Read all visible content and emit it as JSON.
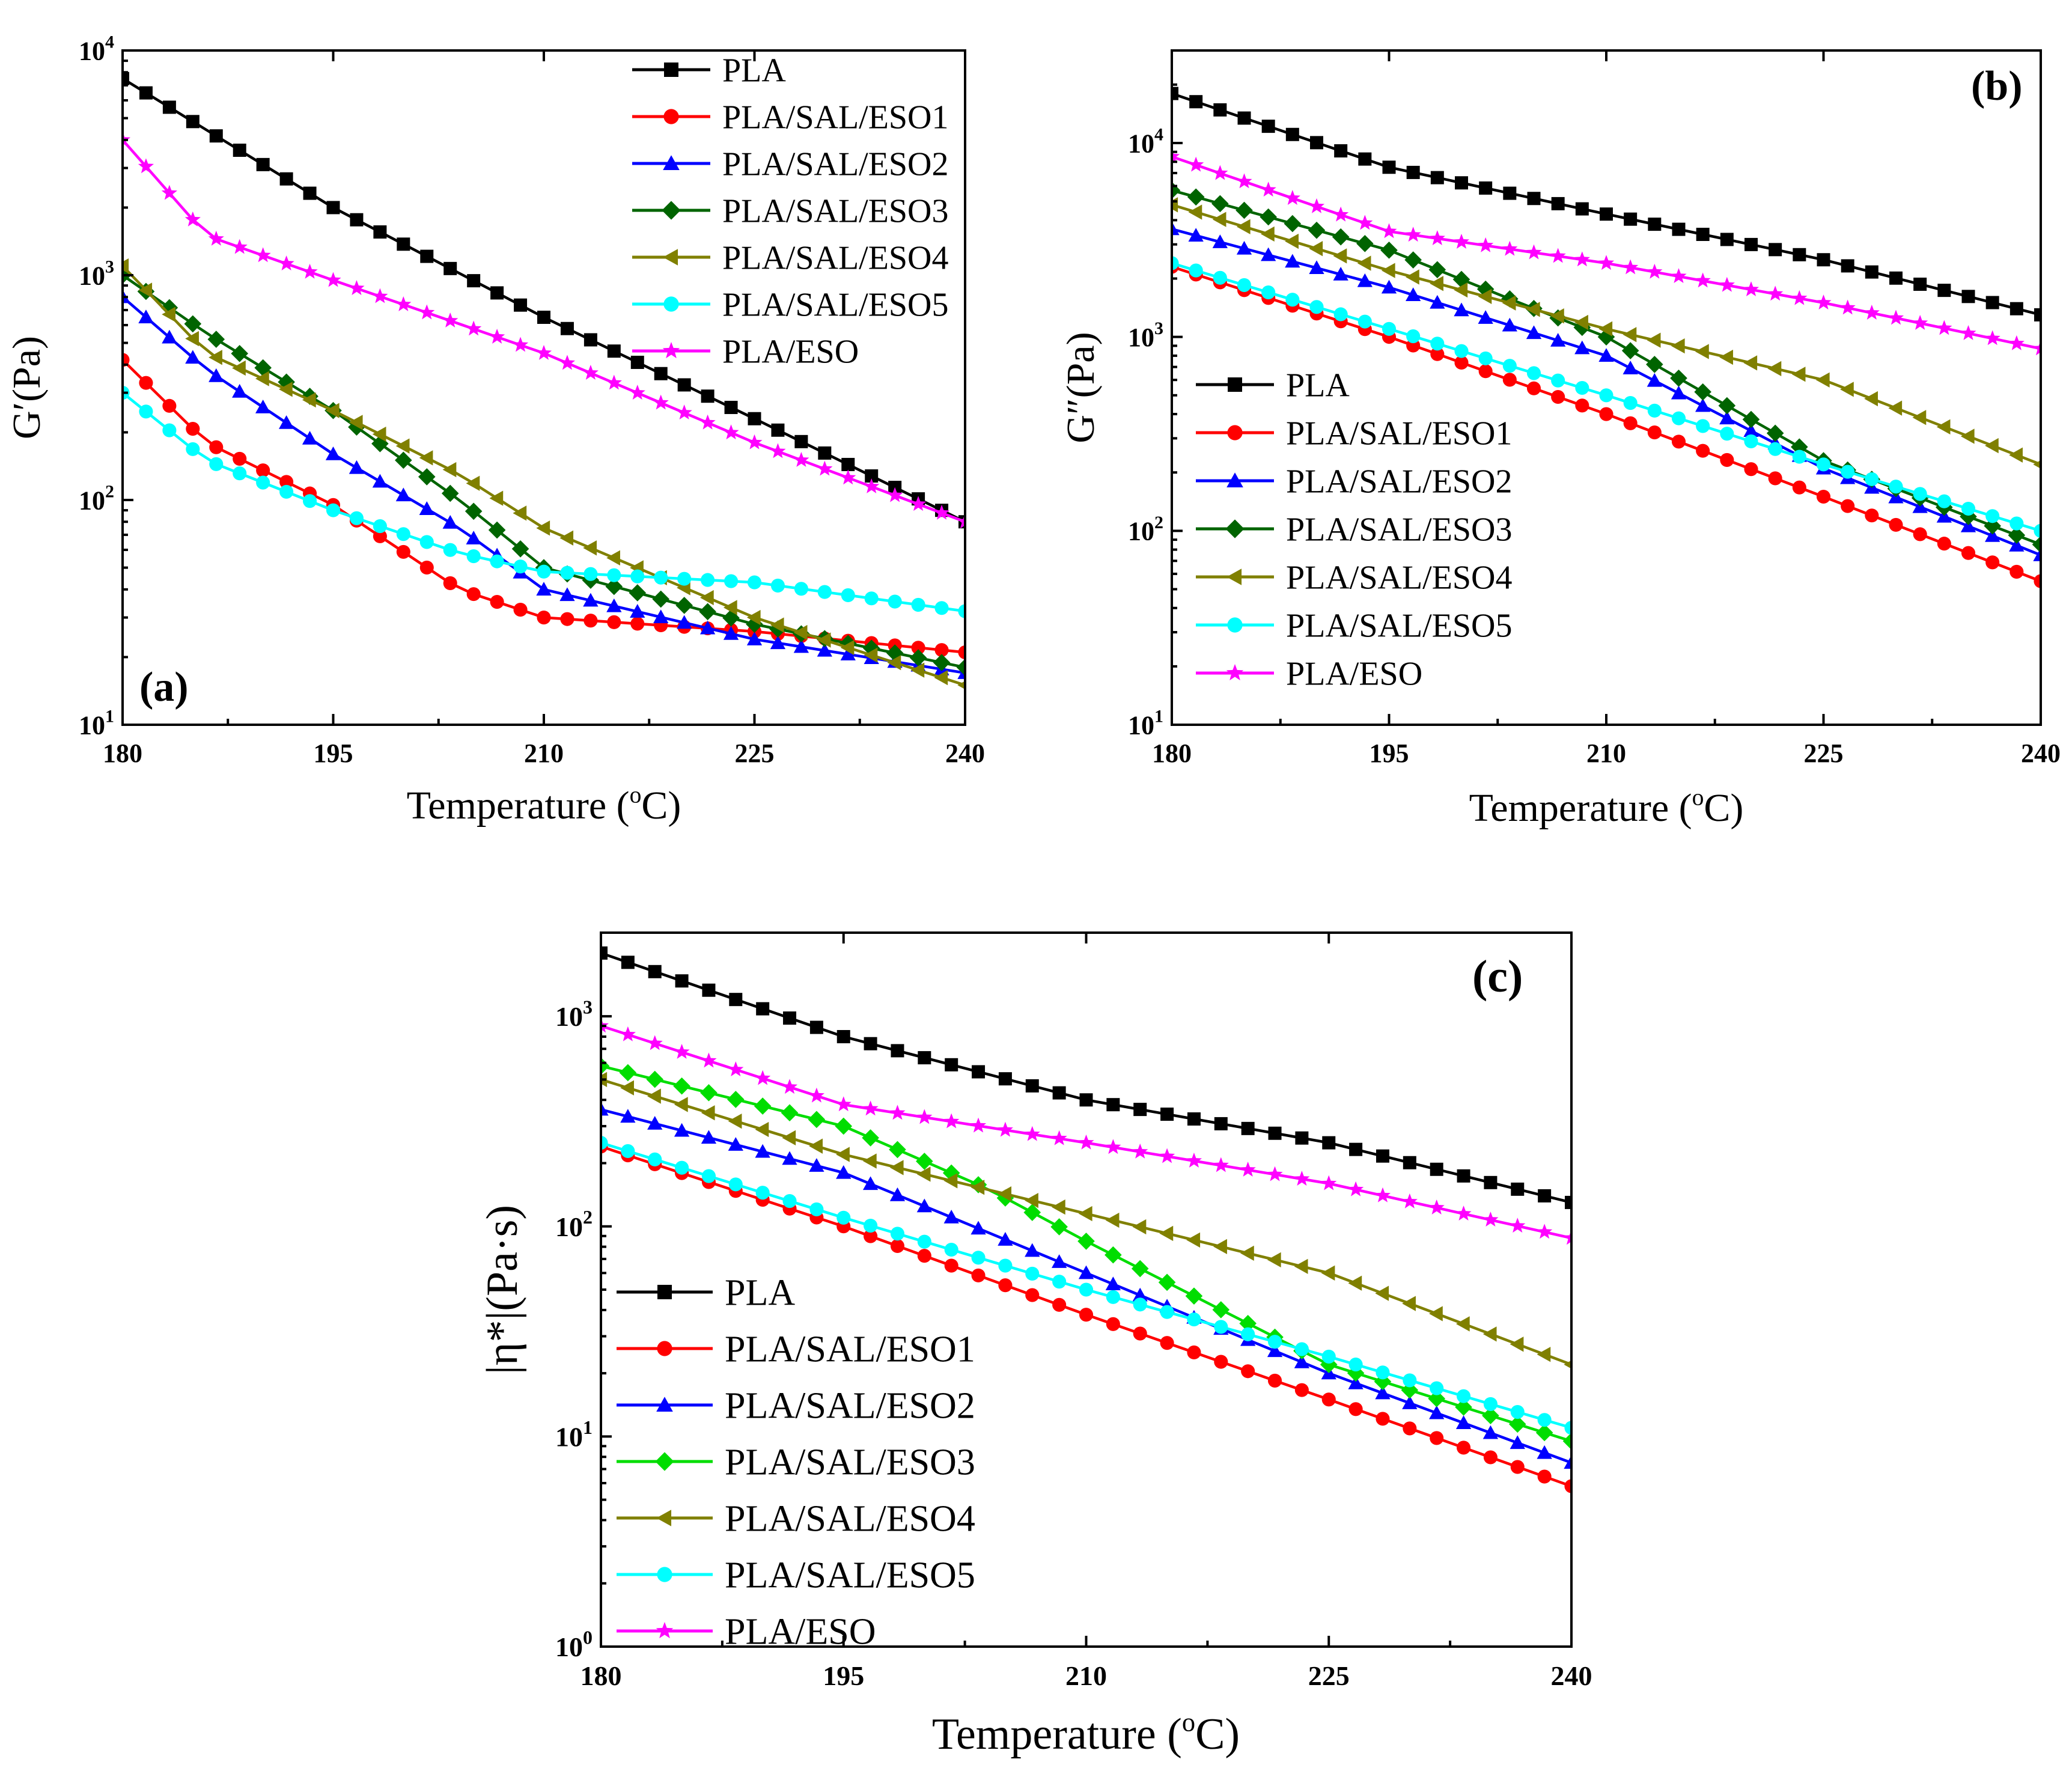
{
  "chart_data": [
    {
      "type": "line",
      "panel_label": "(a)",
      "xlabel": "Temperature (",
      "xlabel_sup": "o",
      "xlabel_tail": "C)",
      "ylabel": "G′(Pa)",
      "xscale": "linear",
      "yscale": "log",
      "xlim": [
        180,
        240
      ],
      "ylim": [
        10,
        10000
      ],
      "xticks": [
        "180",
        "195",
        "210",
        "225",
        "240"
      ],
      "yticks": [
        {
          "base": "10",
          "exp": "1"
        },
        {
          "base": "10",
          "exp": "2"
        },
        {
          "base": "10",
          "exp": "3"
        },
        {
          "base": "10",
          "exp": "4"
        }
      ],
      "legend_position": "top-right",
      "series": [
        {
          "name": "PLA",
          "color": "#000000",
          "marker": "square",
          "x": [
            180,
            195,
            210,
            225,
            240
          ],
          "y": [
            7500,
            2000,
            650,
            230,
            80
          ]
        },
        {
          "name": "PLA/SAL/ESO1",
          "color": "#ff0000",
          "marker": "circle",
          "x": [
            180,
            186,
            195,
            204,
            210,
            225,
            240
          ],
          "y": [
            420,
            180,
            95,
            40,
            30,
            26,
            21
          ]
        },
        {
          "name": "PLA/SAL/ESO2",
          "color": "#0000ff",
          "marker": "triangle-up",
          "x": [
            180,
            186,
            195,
            204,
            210,
            225,
            240
          ],
          "y": [
            800,
            380,
            160,
            75,
            40,
            24,
            17
          ]
        },
        {
          "name": "PLA/SAL/ESO3",
          "color": "#006400",
          "marker": "diamond",
          "x": [
            180,
            186,
            195,
            204,
            210,
            225,
            240
          ],
          "y": [
            1000,
            550,
            250,
            100,
            50,
            28,
            18
          ]
        },
        {
          "name": "PLA/SAL/ESO4",
          "color": "#808000",
          "marker": "triangle-left",
          "x": [
            180,
            186,
            195,
            204,
            210,
            225,
            240
          ],
          "y": [
            1100,
            450,
            250,
            130,
            75,
            30,
            15
          ]
        },
        {
          "name": "PLA/SAL/ESO5",
          "color": "#00ffff",
          "marker": "circle",
          "x": [
            180,
            186,
            195,
            204,
            210,
            225,
            240
          ],
          "y": [
            300,
            150,
            90,
            58,
            48,
            43,
            32
          ]
        },
        {
          "name": "PLA/ESO",
          "color": "#ff00ff",
          "marker": "star",
          "x": [
            180,
            186,
            195,
            210,
            225,
            240
          ],
          "y": [
            4000,
            1500,
            950,
            450,
            180,
            80
          ]
        }
      ]
    },
    {
      "type": "line",
      "panel_label": "(b)",
      "xlabel": "Temperature (",
      "xlabel_sup": "o",
      "xlabel_tail": "C)",
      "ylabel": "G″(Pa)",
      "xscale": "linear",
      "yscale": "log",
      "xlim": [
        180,
        240
      ],
      "ylim": [
        10,
        30000
      ],
      "xticks": [
        "180",
        "195",
        "210",
        "225",
        "240"
      ],
      "yticks": [
        {
          "base": "10",
          "exp": "1"
        },
        {
          "base": "10",
          "exp": "2"
        },
        {
          "base": "10",
          "exp": "3"
        },
        {
          "base": "10",
          "exp": "4"
        }
      ],
      "legend_position": "middle-left",
      "series": [
        {
          "name": "PLA",
          "color": "#000000",
          "marker": "square",
          "x": [
            180,
            195,
            210,
            225,
            240
          ],
          "y": [
            18000,
            7500,
            4300,
            2500,
            1300
          ]
        },
        {
          "name": "PLA/SAL/ESO1",
          "color": "#ff0000",
          "marker": "circle",
          "x": [
            180,
            195,
            210,
            225,
            240
          ],
          "y": [
            2300,
            1000,
            400,
            150,
            55
          ]
        },
        {
          "name": "PLA/SAL/ESO2",
          "color": "#0000ff",
          "marker": "triangle-up",
          "x": [
            180,
            195,
            210,
            225,
            240
          ],
          "y": [
            3600,
            1800,
            800,
            210,
            75
          ]
        },
        {
          "name": "PLA/SAL/ESO3",
          "color": "#006400",
          "marker": "diamond",
          "x": [
            180,
            195,
            204,
            210,
            225,
            240
          ],
          "y": [
            5700,
            2800,
            1500,
            1000,
            230,
            85
          ]
        },
        {
          "name": "PLA/SAL/ESO4",
          "color": "#808000",
          "marker": "triangle-left",
          "x": [
            180,
            195,
            210,
            225,
            240
          ],
          "y": [
            4800,
            2200,
            1100,
            600,
            220
          ]
        },
        {
          "name": "PLA/SAL/ESO5",
          "color": "#00ffff",
          "marker": "circle",
          "x": [
            180,
            195,
            210,
            225,
            240
          ],
          "y": [
            2400,
            1100,
            500,
            220,
            100
          ]
        },
        {
          "name": "PLA/ESO",
          "color": "#ff00ff",
          "marker": "star",
          "x": [
            180,
            195,
            210,
            225,
            240
          ],
          "y": [
            8500,
            3500,
            2400,
            1500,
            870
          ]
        }
      ]
    },
    {
      "type": "line",
      "panel_label": "(c)",
      "xlabel": "Temperature (",
      "xlabel_sup": "o",
      "xlabel_tail": "C)",
      "ylabel": "|η*|(Pa·s)",
      "xscale": "linear",
      "yscale": "log",
      "xlim": [
        180,
        240
      ],
      "ylim": [
        1,
        2500
      ],
      "xticks": [
        "180",
        "195",
        "210",
        "225",
        "240"
      ],
      "yticks": [
        {
          "base": "10",
          "exp": "0"
        },
        {
          "base": "10",
          "exp": "1"
        },
        {
          "base": "10",
          "exp": "2"
        },
        {
          "base": "10",
          "exp": "3"
        }
      ],
      "legend_position": "bottom-left",
      "series": [
        {
          "name": "PLA",
          "color": "#000000",
          "marker": "square",
          "x": [
            180,
            195,
            210,
            225,
            240
          ],
          "y": [
            2000,
            800,
            400,
            250,
            130
          ]
        },
        {
          "name": "PLA/SAL/ESO1",
          "color": "#ff0000",
          "marker": "circle",
          "x": [
            180,
            195,
            210,
            225,
            240
          ],
          "y": [
            240,
            100,
            38,
            15,
            5.8
          ]
        },
        {
          "name": "PLA/SAL/ESO2",
          "color": "#0000ff",
          "marker": "triangle-up",
          "x": [
            180,
            195,
            210,
            225,
            240
          ],
          "y": [
            360,
            180,
            60,
            20,
            7.5
          ]
        },
        {
          "name": "PLA/SAL/ESO3",
          "color": "#00dd00",
          "marker": "diamond",
          "x": [
            180,
            195,
            204,
            210,
            225,
            240
          ],
          "y": [
            580,
            300,
            150,
            85,
            22,
            9.5
          ]
        },
        {
          "name": "PLA/SAL/ESO4",
          "color": "#808000",
          "marker": "triangle-left",
          "x": [
            180,
            195,
            210,
            225,
            240
          ],
          "y": [
            500,
            220,
            115,
            60,
            22
          ]
        },
        {
          "name": "PLA/SAL/ESO5",
          "color": "#00ffff",
          "marker": "circle",
          "x": [
            180,
            195,
            210,
            225,
            240
          ],
          "y": [
            250,
            110,
            50,
            24,
            11
          ]
        },
        {
          "name": "PLA/ESO",
          "color": "#ff00ff",
          "marker": "star",
          "x": [
            180,
            195,
            210,
            225,
            240
          ],
          "y": [
            900,
            380,
            250,
            160,
            88
          ]
        }
      ]
    }
  ]
}
